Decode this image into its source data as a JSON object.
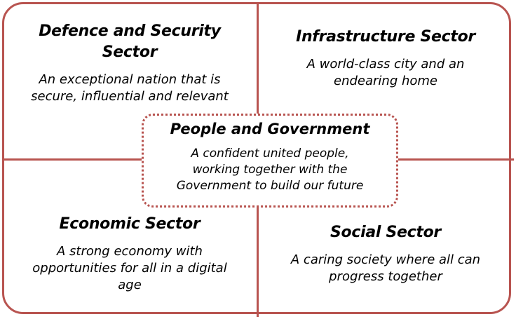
{
  "colors": {
    "border": "#b85450",
    "text": "#000000",
    "background": "#ffffff"
  },
  "quadrants": {
    "top_left": {
      "title_line1": "Defence and Security",
      "title_line2": "Sector",
      "desc_line1": "An exceptional nation that is",
      "desc_line2": "secure, influential and relevant"
    },
    "top_right": {
      "title_line1": "Infrastructure Sector",
      "desc_line1": "A world-class city and an",
      "desc_line2": "endearing home"
    },
    "bottom_left": {
      "title_line1": "Economic Sector",
      "desc_line1": "A strong economy with",
      "desc_line2": "opportunities for all in a digital",
      "desc_line3": "age"
    },
    "bottom_right": {
      "title_line1": "Social Sector",
      "desc_line1": "A caring society where all can",
      "desc_line2": "progress together"
    }
  },
  "center": {
    "title": "People and Government",
    "desc_line1": "A confident united people,",
    "desc_line2": "working together with the",
    "desc_line3": "Government to build our future"
  }
}
